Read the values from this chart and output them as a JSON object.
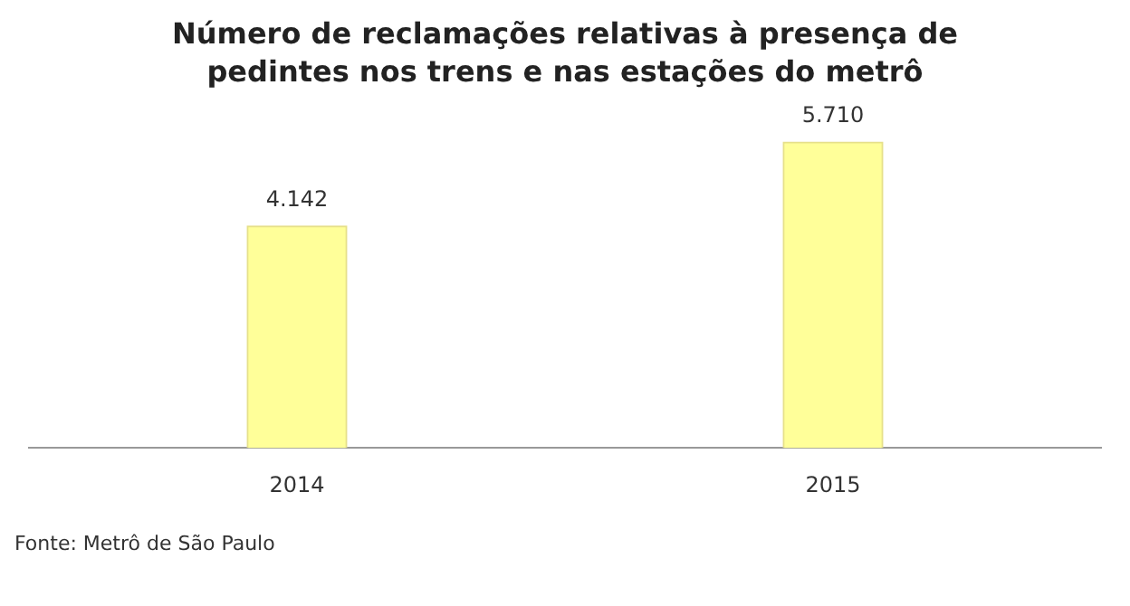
{
  "chart_data": {
    "type": "bar",
    "title": "Número de reclamações relativas à presença de pedintes nos trens e nas estações do metrô",
    "categories": [
      "2014",
      "2015"
    ],
    "values": [
      4142,
      5710
    ],
    "value_labels": [
      "4.142",
      "5.710"
    ],
    "color": "#ffff99",
    "grid": false,
    "legend": false,
    "tick_labels": "x",
    "annotations": [
      "Fonte: Metrô de São Paulo"
    ]
  }
}
